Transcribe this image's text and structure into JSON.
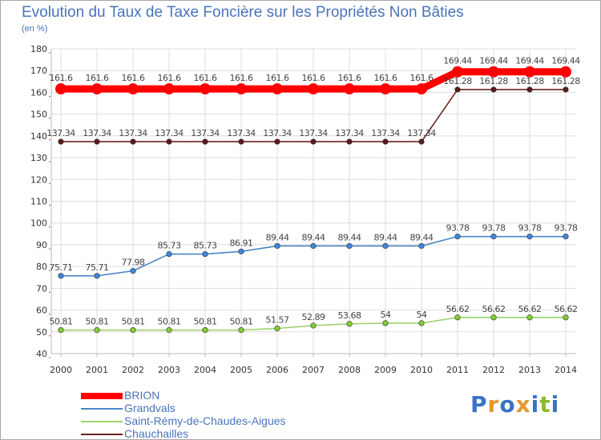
{
  "title": "Evolution du Taux de Taxe Foncière sur les Propriétés Non Bâties",
  "unit_label": "(en %)",
  "brand": {
    "letters": [
      "P",
      "r",
      "o",
      "x",
      "i",
      "t",
      "i"
    ],
    "colors": [
      "#3a73c4",
      "#e5972d",
      "#3a73c4",
      "#e5972d",
      "#3a73c4",
      "#8cbb2d",
      "#3a73c4"
    ]
  },
  "colors": {
    "title": "#4a74b8",
    "grid": "#dddddd",
    "axis": "#bbbbbb",
    "tick_text": "#333333",
    "label_text": "#444444"
  },
  "chart_data": {
    "type": "line",
    "title": "Evolution du Taux de Taxe Foncière sur les Propriétés Non Bâties",
    "ylabel": "(en %)",
    "xlabel": "",
    "ylim": [
      40,
      180
    ],
    "yticks": [
      40,
      50,
      60,
      70,
      80,
      90,
      100,
      110,
      120,
      130,
      140,
      150,
      160,
      170,
      180
    ],
    "grid": true,
    "legend_position": "bottom-left",
    "categories": [
      "2000",
      "2001",
      "2002",
      "2003",
      "2004",
      "2005",
      "2006",
      "2007",
      "2008",
      "2009",
      "2010",
      "2011",
      "2012",
      "2013",
      "2014"
    ],
    "series": [
      {
        "name": "BRION",
        "color": "#ff0000",
        "marker": "#ff0000",
        "bold": true,
        "values": [
          161.6,
          161.6,
          161.6,
          161.6,
          161.6,
          161.6,
          161.6,
          161.6,
          161.6,
          161.6,
          161.6,
          169.44,
          169.44,
          169.44,
          169.44
        ],
        "labels": [
          "161.6",
          "161.6",
          "161.6",
          "161.6",
          "161.6",
          "161.6",
          "161.6",
          "161.6",
          "161.6",
          "161.6",
          "161.6",
          "169.44",
          "169.44",
          "169.44",
          "169.44"
        ]
      },
      {
        "name": "Grandvals",
        "color": "#4b86c6",
        "marker": "#3f86d8",
        "bold": false,
        "values": [
          75.71,
          75.71,
          77.98,
          85.73,
          85.73,
          86.91,
          89.44,
          89.44,
          89.44,
          89.44,
          89.44,
          93.78,
          93.78,
          93.78,
          93.78
        ],
        "labels": [
          "75.71",
          "75.71",
          "77.98",
          "85.73",
          "85.73",
          "86.91",
          "89.44",
          "89.44",
          "89.44",
          "89.44",
          "89.44",
          "93.78",
          "93.78",
          "93.78",
          "93.78"
        ]
      },
      {
        "name": "Saint-Rémy-de-Chaudes-Aigues",
        "color": "#9ed36a",
        "marker": "#82cc35",
        "bold": false,
        "values": [
          50.81,
          50.81,
          50.81,
          50.81,
          50.81,
          50.81,
          51.57,
          52.89,
          53.68,
          54,
          54,
          56.62,
          56.62,
          56.62,
          56.62
        ],
        "labels": [
          "50.81",
          "50.81",
          "50.81",
          "50.81",
          "50.81",
          "50.81",
          "51.57",
          "52.89",
          "53.68",
          "54",
          "54",
          "56.62",
          "56.62",
          "56.62",
          "56.62"
        ]
      },
      {
        "name": "Chauchailles",
        "color": "#6b2323",
        "marker": "#5a1a1a",
        "bold": false,
        "values": [
          137.34,
          137.34,
          137.34,
          137.34,
          137.34,
          137.34,
          137.34,
          137.34,
          137.34,
          137.34,
          137.34,
          161.28,
          161.28,
          161.28,
          161.28
        ],
        "labels": [
          "137.34",
          "137.34",
          "137.34",
          "137.34",
          "137.34",
          "137.34",
          "137.34",
          "137.34",
          "137.34",
          "137.34",
          "137.34",
          "161.28",
          "161.28",
          "161.28",
          "161.28"
        ]
      }
    ]
  }
}
